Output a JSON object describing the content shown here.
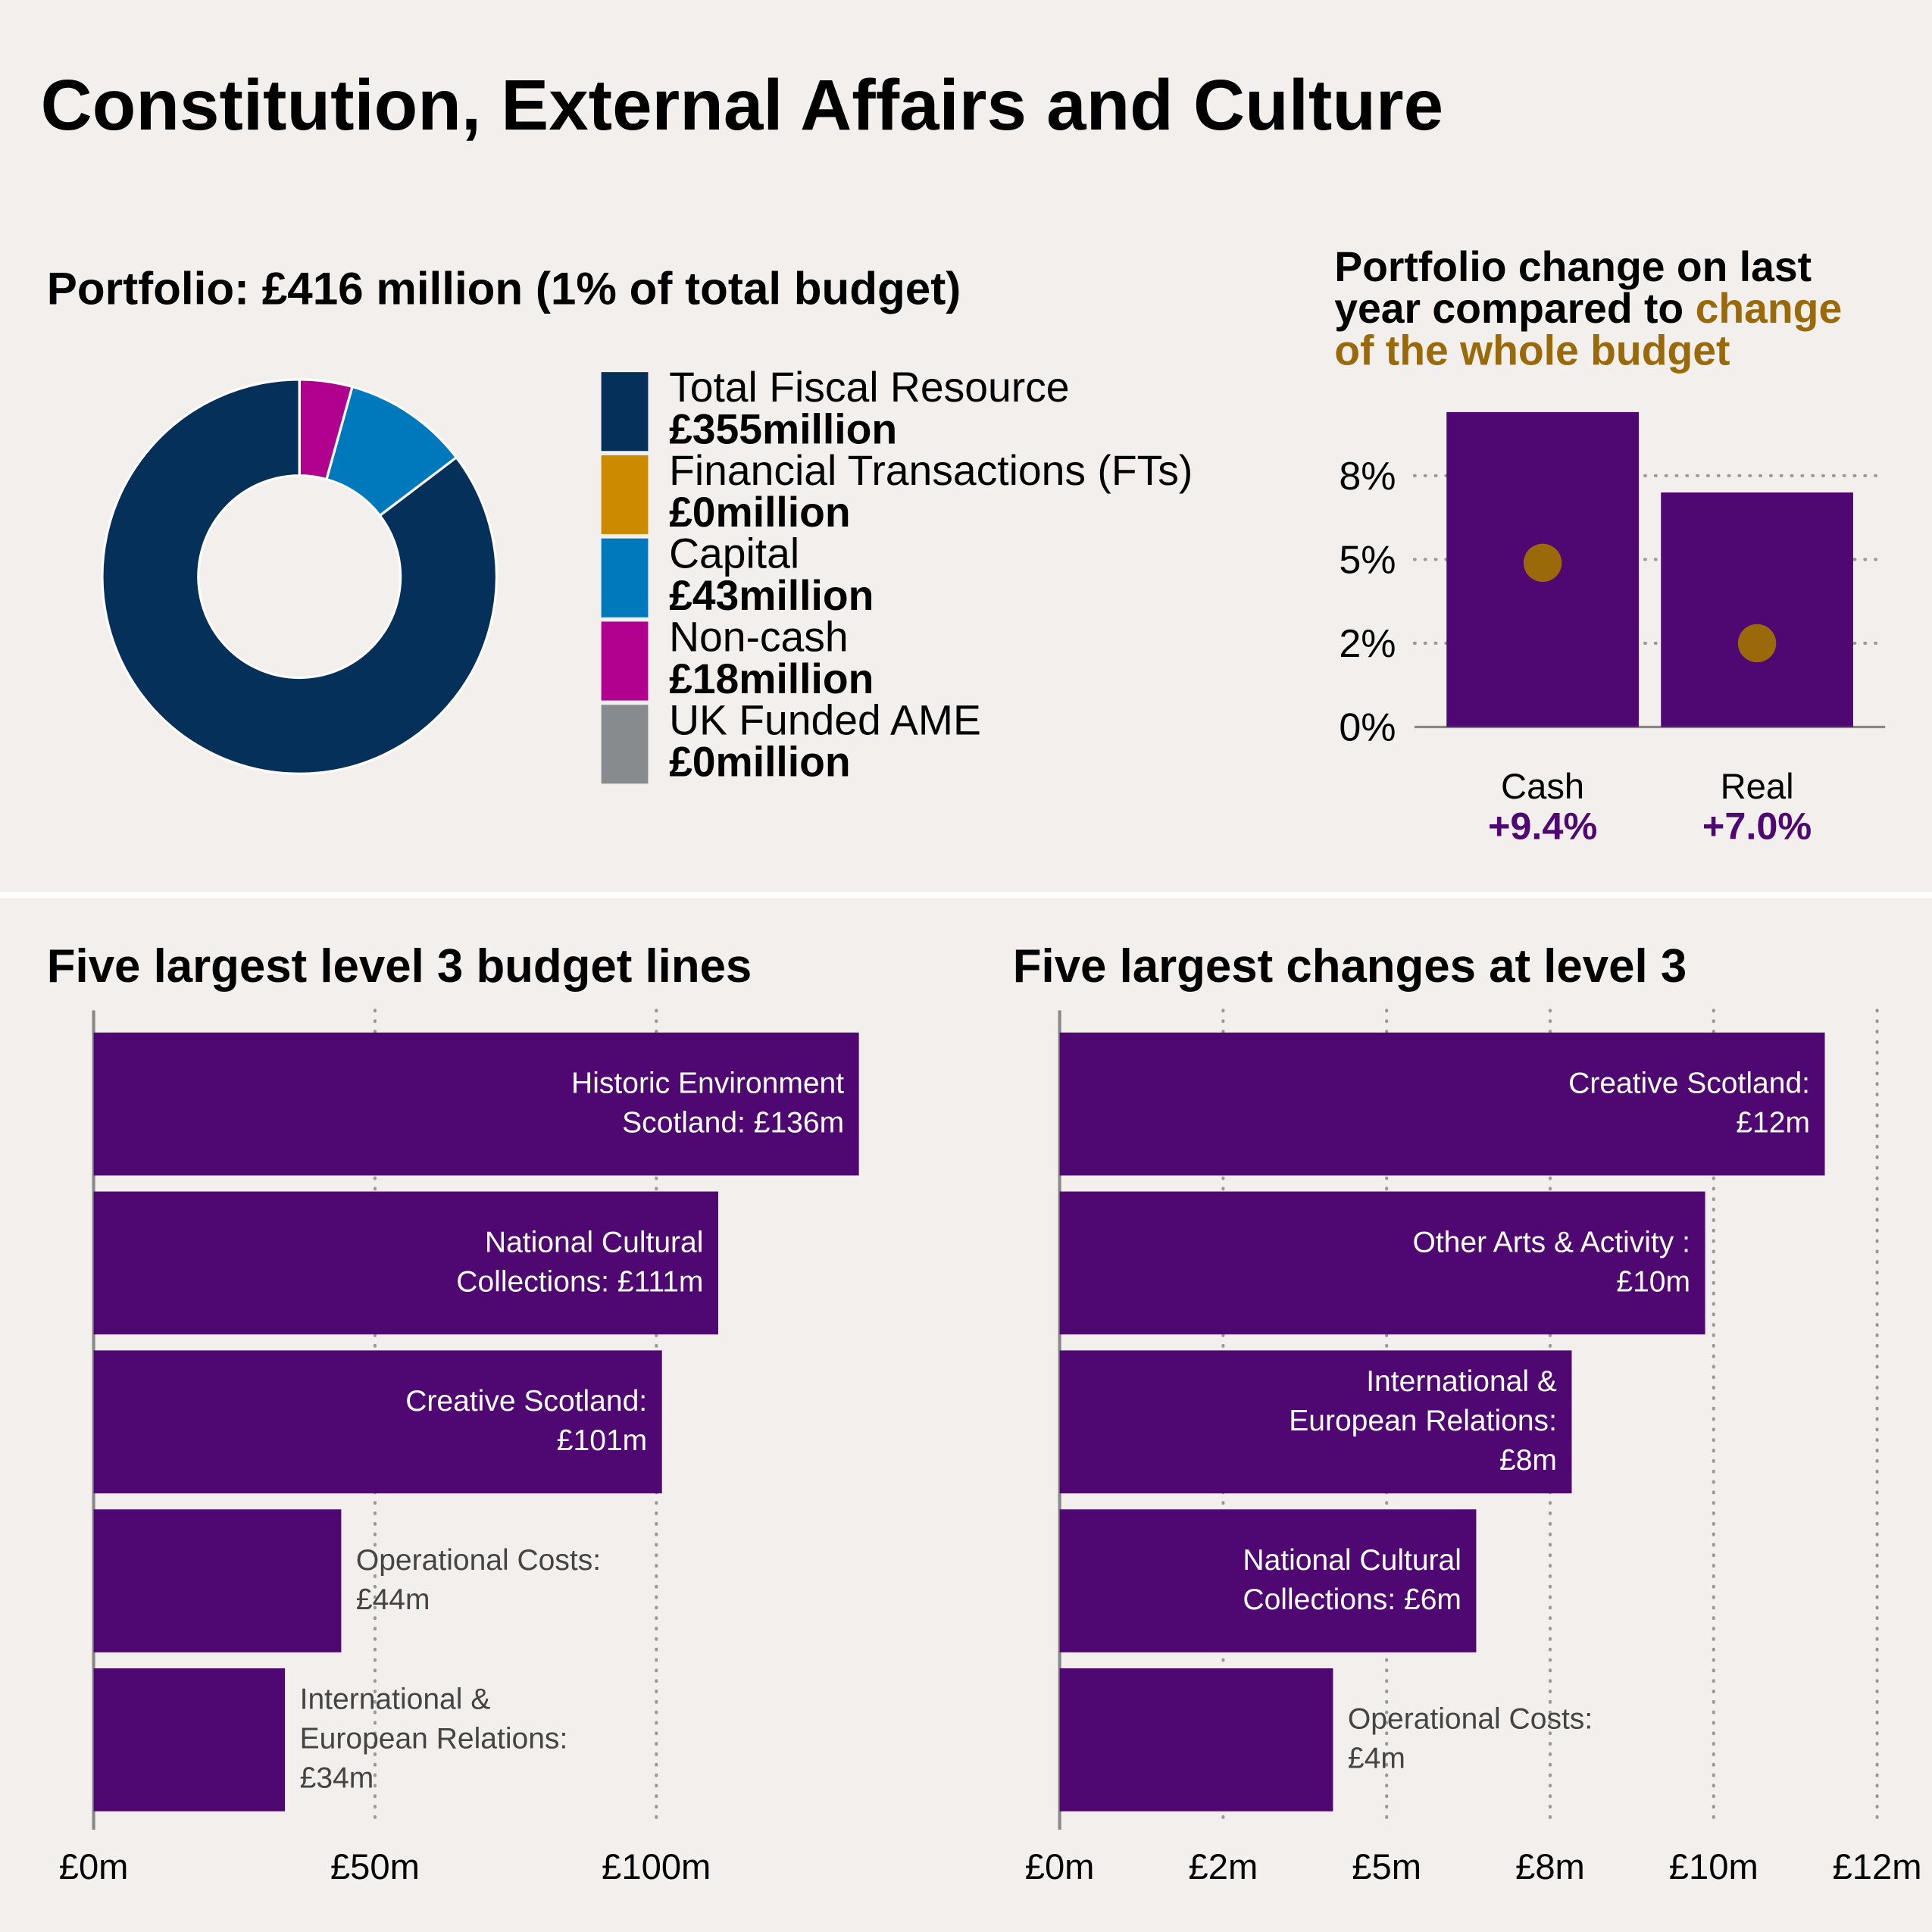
{
  "title": "Constitution, External Affairs and Culture",
  "chart_data": [
    {
      "type": "pie",
      "title": "Portfolio: £416 million (1% of total budget)",
      "categories": [
        "Total Fiscal Resource",
        "Financial Transactions (FTs)",
        "Capital",
        "Non-cash",
        "UK Funded AME"
      ],
      "values": [
        355,
        0,
        43,
        18,
        0
      ],
      "value_labels": [
        "£355million",
        "£0million",
        "£43million",
        "£18million",
        "£0million"
      ],
      "colors": [
        "#04305a",
        "#cc8a00",
        "#0079bc",
        "#b0008e",
        "#878b8e"
      ]
    },
    {
      "type": "bar",
      "title": "Portfolio change on last year compared to",
      "title_highlight": "change of the whole budget",
      "title_highlight_color": "#9a6a0a",
      "categories": [
        "Cash",
        "Real"
      ],
      "series": [
        {
          "style": "bar",
          "color": "#4f0772",
          "values": [
            9.4,
            7.0
          ],
          "value_labels": [
            "+9.4%",
            "+7.0%"
          ]
        },
        {
          "style": "dot",
          "color": "#9a6a0a",
          "values": [
            4.9,
            2.5
          ]
        }
      ],
      "ylim": [
        0,
        9.6
      ],
      "yticks": [
        {
          "value": 0,
          "label": "0%"
        },
        {
          "value": 2.5,
          "label": "2%"
        },
        {
          "value": 5,
          "label": "5%"
        },
        {
          "value": 7.5,
          "label": "8%"
        }
      ],
      "grid": true
    },
    {
      "type": "barh",
      "title": "Five largest level 3 budget lines",
      "categories": [
        "Historic Environment Scotland:",
        "National Cultural Collections:",
        "Creative Scotland:",
        "Operational Costs:",
        "International & European Relations:"
      ],
      "values": [
        136,
        111,
        101,
        44,
        34
      ],
      "value_labels": [
        "£136m",
        "£111m",
        "£101m",
        "£44m",
        "£34m"
      ],
      "color": "#4f0772",
      "xlim": [
        0,
        150
      ],
      "xticks": [
        {
          "value": 0,
          "label": "£0m"
        },
        {
          "value": 50,
          "label": "£50m"
        },
        {
          "value": 100,
          "label": "£100m"
        }
      ],
      "grid": true
    },
    {
      "type": "barh",
      "title": "Five largest changes at level 3",
      "categories": [
        "Creative Scotland:",
        "Other Arts & Activity :",
        "International & European Relations:",
        "National Cultural Collections:",
        "Operational Costs:"
      ],
      "values": [
        11.7,
        9.87,
        7.83,
        6.37,
        4.18
      ],
      "value_labels": [
        "£12m",
        "£10m",
        "£8m",
        "£6m",
        "£4m"
      ],
      "color": "#4f0772",
      "xlim": [
        0,
        13
      ],
      "xticks": [
        {
          "value": 0,
          "label": "£0m"
        },
        {
          "value": 2.5,
          "label": "£2m"
        },
        {
          "value": 5,
          "label": "£5m"
        },
        {
          "value": 7.5,
          "label": "£8m"
        },
        {
          "value": 10,
          "label": "£10m"
        },
        {
          "value": 12.5,
          "label": "£12m"
        }
      ],
      "grid": true
    }
  ]
}
